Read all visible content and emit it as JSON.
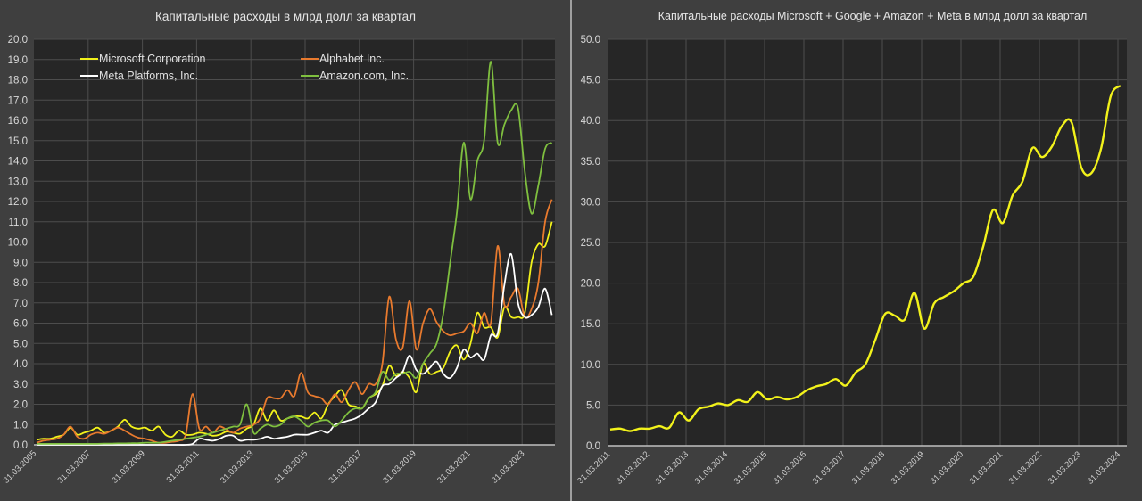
{
  "chart_data": [
    {
      "type": "line",
      "title": "Капитальные расходы в млрд долл за квартал",
      "xlabel": "",
      "ylabel": "",
      "frequency": "quarterly",
      "x_start": "31.03.2005",
      "x_tick_labels": [
        "31.03.2005",
        "31.03.2007",
        "31.03.2009",
        "31.03.2011",
        "31.03.2013",
        "31.03.2015",
        "31.03.2017",
        "31.03.2019",
        "31.03.2021",
        "31.03.2023"
      ],
      "ylim": [
        0,
        20
      ],
      "y_step": 1,
      "y_tick_labels": [
        "0.0",
        "1.0",
        "2.0",
        "3.0",
        "4.0",
        "5.0",
        "6.0",
        "7.0",
        "8.0",
        "9.0",
        "10.0",
        "11.0",
        "12.0",
        "13.0",
        "14.0",
        "15.0",
        "16.0",
        "17.0",
        "18.0",
        "19.0",
        "20.0"
      ],
      "grid": true,
      "legend_position": "top-left, inside plot",
      "series": [
        {
          "name": "Microsoft Corporation",
          "color": "#f2f21b",
          "values": [
            0.25,
            0.3,
            0.3,
            0.4,
            0.5,
            0.85,
            0.5,
            0.6,
            0.7,
            0.85,
            0.6,
            0.7,
            0.9,
            1.24,
            0.9,
            0.8,
            0.85,
            0.7,
            0.9,
            0.5,
            0.4,
            0.7,
            0.5,
            0.5,
            0.6,
            0.55,
            0.45,
            0.5,
            0.65,
            0.6,
            0.55,
            0.8,
            1.0,
            1.8,
            1.2,
            1.7,
            1.2,
            1.3,
            1.4,
            1.4,
            1.3,
            1.6,
            1.3,
            2.0,
            2.4,
            2.7,
            2.0,
            1.9,
            1.8,
            2.3,
            2.5,
            2.9,
            3.9,
            3.4,
            3.6,
            3.3,
            2.6,
            4.0,
            3.5,
            3.6,
            3.8,
            4.6,
            4.9,
            4.2,
            5.0,
            6.5,
            5.8,
            5.8,
            5.3,
            6.8,
            6.3,
            6.3,
            6.5,
            9.0,
            9.9,
            9.8,
            11.0
          ]
        },
        {
          "name": "Alphabet Inc.",
          "color": "#e87a2e",
          "values": [
            0.1,
            0.2,
            0.25,
            0.3,
            0.5,
            0.9,
            0.4,
            0.3,
            0.5,
            0.6,
            0.55,
            0.7,
            0.85,
            0.7,
            0.5,
            0.35,
            0.3,
            0.2,
            0.1,
            0.1,
            0.15,
            0.2,
            0.5,
            2.5,
            0.8,
            0.9,
            0.6,
            0.9,
            0.75,
            0.6,
            0.8,
            0.9,
            1.0,
            1.3,
            2.3,
            2.3,
            2.3,
            2.7,
            2.4,
            3.55,
            2.6,
            2.4,
            2.3,
            2.0,
            2.5,
            2.1,
            2.7,
            3.1,
            2.5,
            3.0,
            3.0,
            4.0,
            7.3,
            5.2,
            4.8,
            7.1,
            4.7,
            6.0,
            6.7,
            6.05,
            5.6,
            5.4,
            5.5,
            5.6,
            6.0,
            5.5,
            6.5,
            6.0,
            9.8,
            6.9,
            7.3,
            7.7,
            6.3,
            6.7,
            8.0,
            11.0,
            12.1
          ]
        },
        {
          "name": "Meta Platforms, Inc.",
          "color": "#ffffff",
          "values": [
            0,
            0,
            0,
            0,
            0,
            0,
            0,
            0,
            0,
            0,
            0,
            0,
            0,
            0,
            0,
            0,
            0,
            0,
            0,
            0,
            0,
            0,
            0,
            0.05,
            0.3,
            0.25,
            0.2,
            0.3,
            0.45,
            0.45,
            0.2,
            0.25,
            0.25,
            0.3,
            0.4,
            0.3,
            0.35,
            0.4,
            0.5,
            0.5,
            0.5,
            0.6,
            0.7,
            0.6,
            1.0,
            1.1,
            1.2,
            1.3,
            1.5,
            1.8,
            2.1,
            2.9,
            3.0,
            3.3,
            3.6,
            4.4,
            3.7,
            3.5,
            3.8,
            4.1,
            3.5,
            3.3,
            3.8,
            4.7,
            4.3,
            4.5,
            4.2,
            5.4,
            5.5,
            7.9,
            9.4,
            7.0,
            6.3,
            6.4,
            6.8,
            7.7,
            6.4
          ]
        },
        {
          "name": "Amazon.com, Inc.",
          "color": "#7fbf3f",
          "values": [
            0.05,
            0.05,
            0.05,
            0.05,
            0.05,
            0.05,
            0.05,
            0.05,
            0.05,
            0.05,
            0.06,
            0.06,
            0.07,
            0.07,
            0.08,
            0.08,
            0.1,
            0.1,
            0.1,
            0.15,
            0.2,
            0.25,
            0.3,
            0.35,
            0.4,
            0.5,
            0.6,
            0.7,
            0.8,
            0.9,
            1.0,
            2.0,
            0.6,
            0.8,
            1.0,
            0.9,
            1.0,
            1.3,
            1.4,
            1.2,
            0.9,
            1.1,
            1.2,
            1.2,
            0.9,
            1.2,
            1.6,
            1.8,
            1.8,
            2.3,
            2.6,
            3.6,
            3.2,
            3.5,
            3.5,
            3.6,
            3.3,
            4.0,
            4.5,
            5.0,
            6.5,
            9.0,
            11.5,
            14.9,
            12.1,
            14.0,
            15.0,
            18.9,
            14.9,
            15.8,
            16.5,
            16.6,
            13.5,
            11.4,
            12.8,
            14.6,
            14.9
          ]
        }
      ]
    },
    {
      "type": "line",
      "title": "Капитальные расходы Microsoft + Google + Amazon + Meta в млрд долл за квартал",
      "xlabel": "",
      "ylabel": "",
      "frequency": "quarterly",
      "x_start": "31.03.2011",
      "x_tick_labels": [
        "31.03.2011",
        "31.03.2012",
        "31.03.2013",
        "31.03.2014",
        "31.03.2015",
        "31.03.2016",
        "31.03.2017",
        "31.03.2018",
        "31.03.2019",
        "31.03.2020",
        "31.03.2021",
        "31.03.2022",
        "31.03.2023",
        "31.03.2024"
      ],
      "ylim": [
        0,
        50
      ],
      "y_step": 5,
      "y_tick_labels": [
        "0.0",
        "5.0",
        "10.0",
        "15.0",
        "20.0",
        "25.0",
        "30.0",
        "35.0",
        "40.0",
        "45.0",
        "50.0"
      ],
      "grid": true,
      "legend_position": "none",
      "series": [
        {
          "name": "Microsoft + Google + Amazon + Meta",
          "color": "#f2f21b",
          "values": [
            2.0,
            2.1,
            1.8,
            2.1,
            2.1,
            2.4,
            2.2,
            4.1,
            3.1,
            4.5,
            4.8,
            5.2,
            5.0,
            5.6,
            5.4,
            6.6,
            5.7,
            6.0,
            5.7,
            6.0,
            6.8,
            7.3,
            7.6,
            8.2,
            7.4,
            9.0,
            10.0,
            13.0,
            16.2,
            16.0,
            15.5,
            18.8,
            14.4,
            17.5,
            18.3,
            19.0,
            20.0,
            20.8,
            24.5,
            29.0,
            27.4,
            30.8,
            32.5,
            36.6,
            35.5,
            36.8,
            39.3,
            39.8,
            34.2,
            33.5,
            36.5,
            43.0,
            44.3
          ]
        }
      ]
    }
  ]
}
